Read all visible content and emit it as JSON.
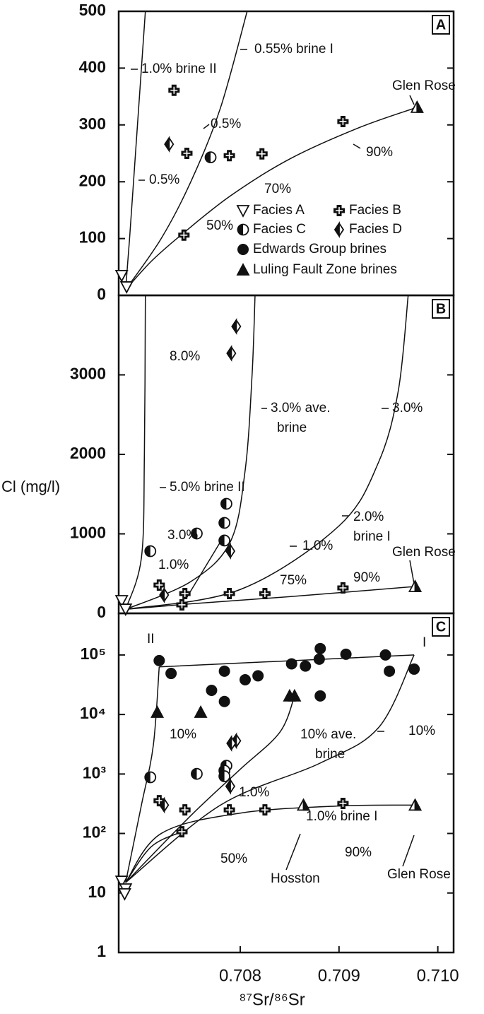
{
  "chart_data": [
    {
      "type": "scatter",
      "panel_label": "A",
      "xlim": [
        0.70677,
        0.71016
      ],
      "ylim": [
        0,
        500
      ],
      "yticks": [
        0,
        100,
        200,
        300,
        400,
        500
      ],
      "series": [
        {
          "name": "Facies A",
          "marker": "tri-down-open",
          "color": "#111111",
          "x": [
            0.7068,
            0.70685
          ],
          "values": [
            35,
            15
          ]
        },
        {
          "name": "Facies B",
          "marker": "cross",
          "color": "#111111",
          "x": [
            0.70733,
            0.70746,
            0.70743,
            0.70789,
            0.70822,
            0.70904
          ],
          "values": [
            361,
            250,
            106,
            246,
            249,
            306
          ]
        },
        {
          "name": "Facies C",
          "marker": "half-circle",
          "color": "#111111",
          "x": [
            0.7077
          ],
          "values": [
            243
          ]
        },
        {
          "name": "Facies D",
          "marker": "half-diamond",
          "color": "#111111",
          "x": [
            0.70728
          ],
          "values": [
            266
          ]
        },
        {
          "name": "Edwards Group brines",
          "marker": "circle",
          "color": "#111111",
          "x": [],
          "values": []
        },
        {
          "name": "Luling Fault Zone brines",
          "marker": "triangle",
          "color": "#111111",
          "x": [],
          "values": []
        },
        {
          "marker": "triangle-half",
          "color": "#111111",
          "x": [
            0.70979
          ],
          "values": [
            331
          ]
        }
      ],
      "curves": [
        {
          "x": [
            0.70684,
            0.70688,
            0.70694,
            0.707,
            0.70704
          ],
          "values": [
            10,
            100,
            250,
            400,
            500
          ]
        },
        {
          "x": [
            0.70684,
            0.7072,
            0.7075,
            0.7078,
            0.70807
          ],
          "values": [
            10,
            100,
            200,
            330,
            500
          ]
        },
        {
          "x": [
            0.70684,
            0.7071,
            0.7074,
            0.7079,
            0.7085,
            0.7092,
            0.70979
          ],
          "values": [
            10,
            60,
            106,
            175,
            240,
            295,
            331
          ]
        }
      ],
      "annotations": [
        "1.0% brine II",
        "0.55% brine I",
        "Glen Rose",
        "0.5%",
        "0.5%",
        "90%",
        "70%",
        "50%"
      ]
    },
    {
      "type": "scatter",
      "panel_label": "B",
      "y_label": "Cl (mg/l)",
      "xlim": [
        0.70677,
        0.71016
      ],
      "ylim": [
        0,
        4000
      ],
      "yticks": [
        0,
        1000,
        2000,
        3000
      ],
      "series": [
        {
          "marker": "tri-down-open",
          "color": "#111111",
          "x": [
            0.7068,
            0.70684
          ],
          "values": [
            160,
            53
          ]
        },
        {
          "marker": "cross",
          "color": "#111111",
          "x": [
            0.70718,
            0.70744,
            0.70741,
            0.70789,
            0.70825,
            0.70904
          ],
          "values": [
            356,
            249,
            107,
            249,
            249,
            320
          ]
        },
        {
          "marker": "half-circle",
          "color": "#111111",
          "x": [
            0.70709,
            0.70756,
            0.70786,
            0.70784,
            0.70784
          ],
          "values": [
            782,
            1004,
            1378,
            1138,
            916
          ]
        },
        {
          "marker": "half-diamond",
          "color": "#111111",
          "x": [
            0.70796,
            0.70791,
            0.7079,
            0.70723
          ],
          "values": [
            3609,
            3271,
            782,
            231
          ]
        },
        {
          "marker": "triangle-half",
          "color": "#111111",
          "x": [
            0.70977
          ],
          "values": [
            338
          ]
        }
      ],
      "curves": [
        {
          "x": [
            0.70684,
            0.707,
            0.70703,
            0.70704
          ],
          "values": [
            50,
            700,
            2000,
            4000
          ]
        },
        {
          "x": [
            0.70684,
            0.7075,
            0.7079,
            0.70805,
            0.70812,
            0.70815
          ],
          "values": [
            50,
            400,
            900,
            1800,
            3000,
            4000
          ]
        },
        {
          "x": [
            0.70684,
            0.708,
            0.709,
            0.7094,
            0.7096,
            0.7097
          ],
          "values": [
            50,
            300,
            1100,
            1900,
            2800,
            4000
          ]
        },
        {
          "x": [
            0.70684,
            0.7075,
            0.7085,
            0.70977
          ],
          "values": [
            50,
            120,
            210,
            338
          ]
        },
        {
          "x": [
            0.70745,
            0.7078
          ],
          "values": [
            180,
            900
          ]
        }
      ],
      "annotations": [
        "8.0%",
        "3.0% ave.",
        "brine",
        "3.0%",
        "5.0% brine II",
        "2.0%",
        "brine I",
        "3.0%",
        "1.0%",
        "1.0%",
        "Glen Rose",
        "75%",
        "90%"
      ]
    },
    {
      "type": "scatter",
      "panel_label": "C",
      "yscale": "log",
      "x_label": "⁸⁷Sr/⁸⁶Sr",
      "xlim": [
        0.70677,
        0.71016
      ],
      "xticks": [
        0.708,
        0.709,
        {
          "value": 0.71,
          "label": "0.710"
        }
      ],
      "ylim": [
        1,
        500000
      ],
      "yticks": [
        1,
        10,
        {
          "value": 100,
          "label": "10²"
        },
        {
          "value": 1000,
          "label": "10³"
        },
        {
          "value": 10000,
          "label": "10⁴"
        },
        {
          "value": 100000,
          "label": "10⁵"
        }
      ],
      "series": [
        {
          "marker": "circle",
          "color": "#111111",
          "x": [
            0.70718,
            0.7073,
            0.70771,
            0.70784,
            0.70784,
            0.70805,
            0.70818,
            0.70852,
            0.70866,
            0.70881,
            0.7088,
            0.70907,
            0.70947,
            0.70951,
            0.70976,
            0.70881
          ],
          "values": [
            80400,
            48900,
            25400,
            53400,
            16500,
            38300,
            44600,
            70900,
            65000,
            128000,
            84900,
            102800,
            100000,
            53400,
            57800,
            20500
          ]
        },
        {
          "marker": "triangle",
          "color": "#111111",
          "x": [
            0.70716,
            0.7076,
            0.7085,
            0.70855
          ],
          "values": [
            10900,
            10900,
            20500,
            20500
          ]
        },
        {
          "marker": "tri-down-open",
          "color": "#111111",
          "x": [
            0.7068,
            0.70684,
            0.70683
          ],
          "values": [
            15.8,
            11.7,
            9.7
          ]
        },
        {
          "marker": "cross",
          "color": "#111111",
          "x": [
            0.70718,
            0.70744,
            0.70741,
            0.70789,
            0.70825,
            0.70904
          ],
          "values": [
            356,
            249,
            107,
            249,
            249,
            320
          ]
        },
        {
          "marker": "half-circle",
          "color": "#111111",
          "x": [
            0.70709,
            0.70756,
            0.70786,
            0.70784,
            0.70784
          ],
          "values": [
            880,
            1004,
            1378,
            1138,
            916
          ]
        },
        {
          "marker": "half-diamond",
          "color": "#111111",
          "x": [
            0.70796,
            0.70791,
            0.7079,
            0.70723
          ],
          "values": [
            3609,
            3271,
            620,
            300
          ]
        },
        {
          "marker": "triangle-half",
          "color": "#111111",
          "x": [
            0.70977,
            0.70864
          ],
          "values": [
            300,
            300
          ]
        }
      ],
      "curves": [
        {
          "x": [
            0.70718,
            0.70976
          ],
          "values": [
            63000,
            100000
          ]
        },
        {
          "x": [
            0.70684,
            0.707,
            0.70712,
            0.70718
          ],
          "values": [
            15,
            300,
            3000,
            63000
          ]
        },
        {
          "x": [
            0.70684,
            0.7075,
            0.708,
            0.7084,
            0.70855
          ],
          "values": [
            15,
            200,
            1200,
            5000,
            20500
          ]
        },
        {
          "x": [
            0.70684,
            0.7078,
            0.7088,
            0.7094,
            0.70976
          ],
          "values": [
            15,
            300,
            1500,
            6000,
            100000
          ]
        },
        {
          "x": [
            0.70684,
            0.7072,
            0.708,
            0.709,
            0.70977
          ],
          "values": [
            15,
            100,
            220,
            290,
            300
          ]
        },
        {
          "x": [
            0.70684,
            0.7071,
            0.70741
          ],
          "values": [
            15,
            60,
            107
          ]
        }
      ],
      "annotations": [
        "II",
        "I",
        "10%",
        "10% ave.",
        "brine",
        "10%",
        "1.0%",
        "1.0% brine I",
        "50%",
        "90%",
        "Hosston",
        "Glen Rose"
      ]
    }
  ]
}
